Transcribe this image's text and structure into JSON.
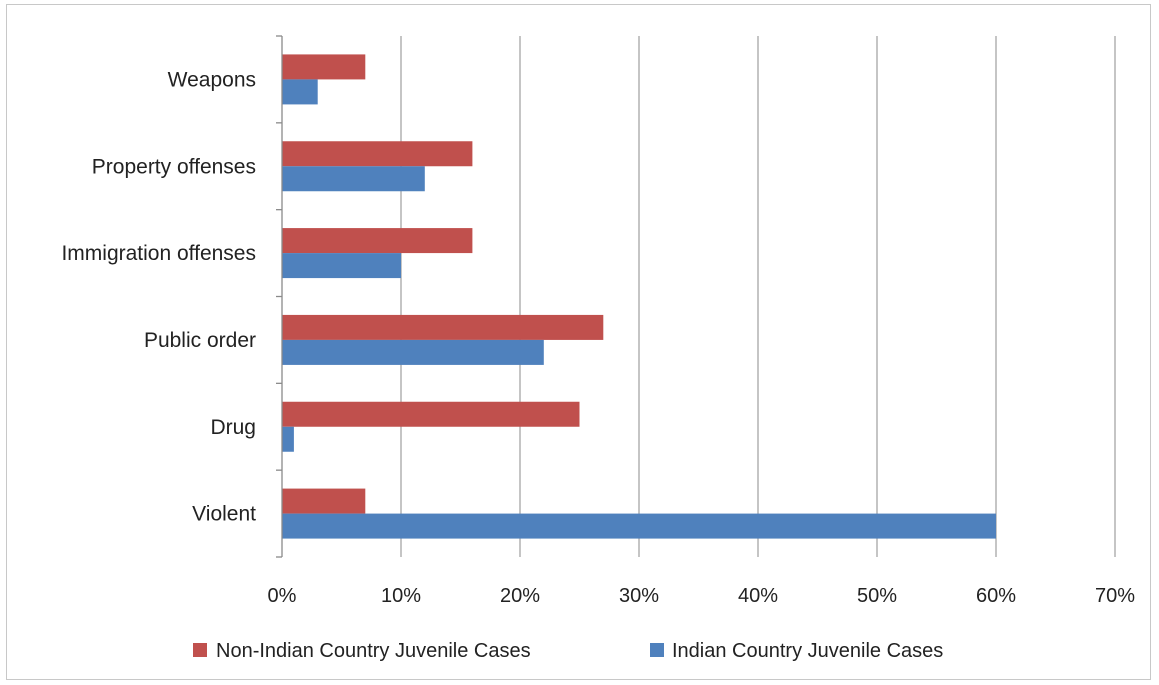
{
  "chart_data": {
    "type": "bar",
    "orientation": "horizontal",
    "categories": [
      "Weapons",
      "Property offenses",
      "Immigration offenses",
      "Public order",
      "Drug",
      "Violent"
    ],
    "series": [
      {
        "name": "Non-Indian Country Juvenile Cases",
        "color": "#c0504d",
        "values": [
          7,
          16,
          16,
          27,
          25,
          7
        ]
      },
      {
        "name": "Indian Country Juvenile Cases",
        "color": "#4f81bd",
        "values": [
          3,
          12,
          10,
          22,
          1,
          60
        ]
      }
    ],
    "xlim": [
      0,
      70
    ],
    "xticks": [
      "0%",
      "10%",
      "20%",
      "30%",
      "40%",
      "50%",
      "60%",
      "70%"
    ],
    "grid": "vertical",
    "legend": "bottom"
  }
}
